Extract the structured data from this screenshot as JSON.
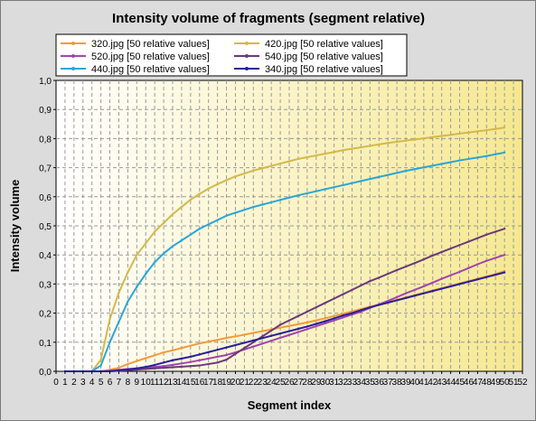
{
  "chart_data": {
    "type": "line",
    "title": "Intensity volume of fragments (segment relative)",
    "xlabel": "Segment index",
    "ylabel": "Intensity volume",
    "xlim": [
      0,
      52
    ],
    "ylim": [
      0,
      1
    ],
    "x_ticks": [
      "0",
      "1",
      "2",
      "3",
      "4",
      "5",
      "6",
      "7",
      "8",
      "9",
      "10",
      "11",
      "12",
      "13",
      "14",
      "15",
      "16",
      "17",
      "18",
      "19",
      "20",
      "21",
      "22",
      "23",
      "24",
      "25",
      "26",
      "27",
      "28",
      "29",
      "30",
      "31",
      "32",
      "33",
      "34",
      "35",
      "36",
      "37",
      "38",
      "39",
      "40",
      "41",
      "42",
      "43",
      "44",
      "45",
      "46",
      "47",
      "48",
      "49",
      "50",
      "51",
      "52"
    ],
    "y_ticks": [
      "0,0",
      "0,1",
      "0,2",
      "0,3",
      "0,4",
      "0,5",
      "0,6",
      "0,7",
      "0,8",
      "0,9",
      "1,0"
    ],
    "grid": true,
    "legend_position": "top-left",
    "background_gradient": [
      "#ffffff",
      "#f6e890"
    ],
    "x": [
      1,
      2,
      3,
      4,
      5,
      6,
      7,
      8,
      9,
      10,
      11,
      12,
      13,
      14,
      15,
      16,
      17,
      18,
      19,
      20,
      21,
      22,
      23,
      24,
      25,
      26,
      27,
      28,
      29,
      30,
      31,
      32,
      33,
      34,
      35,
      36,
      37,
      38,
      39,
      40,
      41,
      42,
      43,
      44,
      45,
      46,
      47,
      48,
      49,
      50
    ],
    "series": [
      {
        "name": "320.jpg [50 relative values]",
        "color": "#f39a3a",
        "values": [
          0,
          0,
          0,
          0,
          0,
          0.005,
          0.012,
          0.025,
          0.035,
          0.045,
          0.055,
          0.065,
          0.072,
          0.08,
          0.088,
          0.096,
          0.102,
          0.108,
          0.115,
          0.12,
          0.126,
          0.132,
          0.138,
          0.144,
          0.15,
          0.156,
          0.162,
          0.168,
          0.175,
          0.182,
          0.19,
          0.198,
          0.206,
          0.214,
          0.222,
          0.23,
          0.238,
          0.246,
          0.254,
          0.262,
          0.27,
          0.278,
          0.286,
          0.294,
          0.302,
          0.31,
          0.318,
          0.326,
          0.334,
          0.345
        ]
      },
      {
        "name": "420.jpg [50 relative values]",
        "color": "#d4b84a",
        "values": [
          0,
          0,
          0,
          0,
          0.04,
          0.18,
          0.27,
          0.34,
          0.4,
          0.44,
          0.48,
          0.51,
          0.54,
          0.565,
          0.59,
          0.61,
          0.628,
          0.643,
          0.657,
          0.67,
          0.68,
          0.69,
          0.698,
          0.706,
          0.714,
          0.722,
          0.73,
          0.736,
          0.742,
          0.748,
          0.754,
          0.76,
          0.765,
          0.77,
          0.775,
          0.78,
          0.785,
          0.789,
          0.793,
          0.797,
          0.801,
          0.805,
          0.809,
          0.813,
          0.817,
          0.821,
          0.825,
          0.829,
          0.833,
          0.838
        ]
      },
      {
        "name": "520.jpg [50 relative values]",
        "color": "#a045b0",
        "values": [
          0,
          0,
          0,
          0,
          0,
          0.002,
          0.005,
          0.008,
          0.01,
          0.012,
          0.015,
          0.018,
          0.022,
          0.027,
          0.032,
          0.038,
          0.044,
          0.05,
          0.056,
          0.065,
          0.075,
          0.085,
          0.095,
          0.105,
          0.115,
          0.125,
          0.135,
          0.145,
          0.155,
          0.165,
          0.175,
          0.185,
          0.195,
          0.205,
          0.218,
          0.23,
          0.242,
          0.255,
          0.268,
          0.28,
          0.292,
          0.305,
          0.318,
          0.33,
          0.342,
          0.355,
          0.368,
          0.38,
          0.39,
          0.4
        ]
      },
      {
        "name": "540.jpg [50 relative values]",
        "color": "#6a3a7a",
        "values": [
          0,
          0,
          0,
          0,
          0,
          0,
          0.002,
          0.004,
          0.006,
          0.008,
          0.01,
          0.012,
          0.014,
          0.016,
          0.018,
          0.02,
          0.025,
          0.03,
          0.04,
          0.06,
          0.08,
          0.1,
          0.12,
          0.14,
          0.16,
          0.175,
          0.19,
          0.205,
          0.22,
          0.235,
          0.25,
          0.265,
          0.28,
          0.295,
          0.31,
          0.322,
          0.335,
          0.348,
          0.36,
          0.372,
          0.385,
          0.398,
          0.41,
          0.422,
          0.434,
          0.446,
          0.458,
          0.47,
          0.48,
          0.49
        ]
      },
      {
        "name": "440.jpg [50 relative values]",
        "color": "#2aa6d8",
        "values": [
          0,
          0,
          0,
          0,
          0.02,
          0.1,
          0.17,
          0.24,
          0.29,
          0.335,
          0.375,
          0.405,
          0.43,
          0.45,
          0.47,
          0.49,
          0.505,
          0.52,
          0.535,
          0.545,
          0.555,
          0.565,
          0.573,
          0.581,
          0.589,
          0.597,
          0.605,
          0.612,
          0.619,
          0.626,
          0.633,
          0.64,
          0.647,
          0.654,
          0.661,
          0.668,
          0.675,
          0.682,
          0.689,
          0.695,
          0.701,
          0.707,
          0.713,
          0.719,
          0.725,
          0.73,
          0.735,
          0.74,
          0.746,
          0.752
        ]
      },
      {
        "name": "340.jpg [50 relative values]",
        "color": "#2a1f9a",
        "values": [
          0,
          0,
          0,
          0,
          0,
          0,
          0.003,
          0.006,
          0.01,
          0.015,
          0.022,
          0.03,
          0.038,
          0.044,
          0.05,
          0.058,
          0.066,
          0.074,
          0.082,
          0.09,
          0.098,
          0.106,
          0.114,
          0.122,
          0.13,
          0.138,
          0.146,
          0.154,
          0.163,
          0.172,
          0.182,
          0.192,
          0.2,
          0.21,
          0.22,
          0.228,
          0.236,
          0.244,
          0.252,
          0.26,
          0.268,
          0.276,
          0.284,
          0.292,
          0.3,
          0.308,
          0.316,
          0.324,
          0.332,
          0.34
        ]
      }
    ]
  }
}
